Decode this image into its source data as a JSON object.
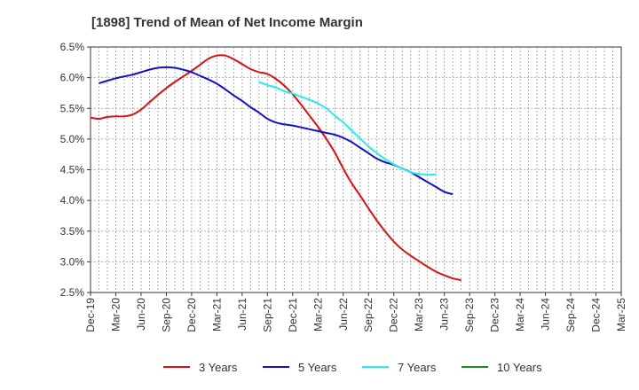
{
  "chart_data": {
    "type": "line",
    "title": "[1898]  Trend of Mean of Net Income Margin",
    "xlabel": "",
    "ylabel": "",
    "x_ticks": [
      "Dec-19",
      "Mar-20",
      "Jun-20",
      "Sep-20",
      "Dec-20",
      "Mar-21",
      "Jun-21",
      "Sep-21",
      "Dec-21",
      "Mar-22",
      "Jun-22",
      "Sep-22",
      "Dec-22",
      "Mar-23",
      "Jun-23",
      "Sep-23",
      "Dec-23",
      "Mar-24",
      "Jun-24",
      "Sep-24",
      "Dec-24",
      "Mar-25"
    ],
    "y_ticks": [
      "2.5%",
      "3.0%",
      "3.5%",
      "4.0%",
      "4.5%",
      "5.0%",
      "5.5%",
      "6.0%",
      "6.5%"
    ],
    "ylim": [
      2.5,
      6.5
    ],
    "grid": true,
    "legend_position": "bottom",
    "series": [
      {
        "name": "3 Years",
        "color": "#dd1111",
        "values": [
          5.35,
          5.33,
          5.36,
          5.37,
          5.37,
          5.4,
          5.48,
          5.6,
          5.72,
          5.83,
          5.93,
          6.02,
          6.11,
          6.21,
          6.31,
          6.36,
          6.36,
          6.3,
          6.22,
          6.14,
          6.09,
          6.06,
          5.98,
          5.87,
          5.73,
          5.56,
          5.38,
          5.2,
          5.0,
          4.78,
          4.52,
          4.28,
          4.08,
          3.87,
          3.67,
          3.49,
          3.33,
          3.2,
          3.1,
          3.01,
          2.92,
          2.84,
          2.78,
          2.73,
          2.7
        ]
      },
      {
        "name": "5 Years",
        "color": "#1111cc",
        "values": [
          null,
          5.91,
          5.95,
          5.99,
          6.02,
          6.05,
          6.09,
          6.13,
          6.16,
          6.17,
          6.16,
          6.13,
          6.09,
          6.03,
          5.97,
          5.9,
          5.81,
          5.71,
          5.62,
          5.52,
          5.43,
          5.33,
          5.27,
          5.24,
          5.22,
          5.19,
          5.16,
          5.13,
          5.1,
          5.07,
          5.02,
          4.95,
          4.86,
          4.77,
          4.68,
          4.62,
          4.58,
          4.52,
          4.46,
          4.38,
          4.3,
          4.22,
          4.14,
          4.1,
          null
        ]
      },
      {
        "name": "7 Years",
        "color": "#22eeee",
        "values": [
          null,
          null,
          null,
          null,
          null,
          null,
          null,
          null,
          null,
          null,
          null,
          null,
          null,
          null,
          null,
          null,
          null,
          null,
          null,
          null,
          5.93,
          5.88,
          5.84,
          5.78,
          5.74,
          5.69,
          5.64,
          5.58,
          5.5,
          5.38,
          5.27,
          5.14,
          5.01,
          4.88,
          4.77,
          4.67,
          4.59,
          4.52,
          4.46,
          4.43,
          4.42,
          4.42,
          null,
          null,
          null
        ]
      },
      {
        "name": "10 Years",
        "color": "#228822",
        "values": []
      }
    ]
  }
}
